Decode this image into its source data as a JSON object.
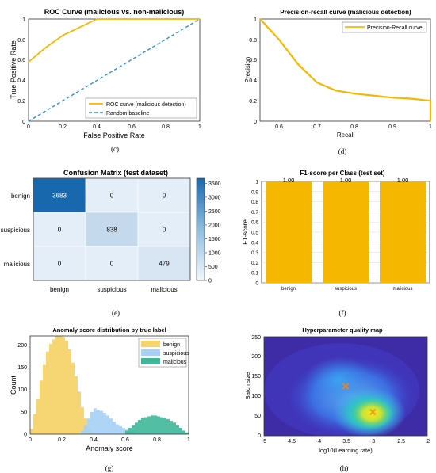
{
  "colors": {
    "orange": "#F5B700",
    "blue": "#2D8FE0",
    "benign_hist": "#F6D36B",
    "suspicious_hist": "#A6D0F5",
    "malicious_hist": "#3FB89A",
    "gray": "#555555"
  },
  "chart_data": [
    {
      "panel": "(c)",
      "type": "line",
      "title": "ROC Curve (malicious vs. non-malicious)",
      "xlabel": "False Positive Rate",
      "ylabel": "True Positive Rate",
      "xlim": [
        0,
        1
      ],
      "ylim": [
        0,
        1
      ],
      "xticks": [
        "0",
        "0.2",
        "0.4",
        "0.6",
        "0.8",
        "1"
      ],
      "yticks": [
        "0",
        "0.2",
        "0.4",
        "0.6",
        "0.8",
        "1"
      ],
      "grid": false,
      "legend": "bottom-right",
      "series": [
        {
          "name": "ROC curve (malicious detection)",
          "style": "solid",
          "x": [
            0,
            0.1,
            0.2,
            0.3,
            0.4,
            0.5,
            0.6,
            0.8,
            1.0
          ],
          "y": [
            0.58,
            0.72,
            0.84,
            0.92,
            1.0,
            1.0,
            1.0,
            1.0,
            1.0
          ]
        },
        {
          "name": "Random baseline",
          "style": "dashed",
          "x": [
            0,
            1
          ],
          "y": [
            0,
            1
          ]
        }
      ]
    },
    {
      "panel": "(d)",
      "type": "line",
      "title": "Precision-recall curve (malicious detection)",
      "xlabel": "Recall",
      "ylabel": "Precision",
      "xlim": [
        0.55,
        1
      ],
      "ylim": [
        0,
        1
      ],
      "xticks": [
        "0.6",
        "0.7",
        "0.8",
        "0.9",
        "1"
      ],
      "yticks": [
        "0",
        "0.2",
        "0.4",
        "0.6",
        "0.8",
        "1"
      ],
      "grid": false,
      "legend": "top-right",
      "series": [
        {
          "name": "Precision-Recall curve",
          "x": [
            0.55,
            0.6,
            0.65,
            0.7,
            0.75,
            0.8,
            0.85,
            0.9,
            0.95,
            1.0,
            1.0
          ],
          "y": [
            1.0,
            0.8,
            0.56,
            0.38,
            0.3,
            0.27,
            0.25,
            0.23,
            0.22,
            0.2,
            0.0
          ]
        }
      ]
    },
    {
      "panel": "(e)",
      "type": "heatmap",
      "title": "Confusion Matrix (test dataset)",
      "rows": [
        "benign",
        "suspicious",
        "malicious"
      ],
      "cols": [
        "benign",
        "suspicious",
        "malicious"
      ],
      "values": [
        [
          3683,
          0,
          0
        ],
        [
          0,
          838,
          0
        ],
        [
          0,
          0,
          479
        ]
      ],
      "cell_labels": [
        [
          "3683",
          "0",
          "0"
        ],
        [
          "0",
          "838",
          "0"
        ],
        [
          "0",
          "0",
          "479"
        ]
      ],
      "colorbar_ticks": [
        "0",
        "500",
        "1000",
        "1500",
        "2000",
        "2500",
        "3000",
        "3500"
      ],
      "colorbar_range": [
        0,
        3683
      ]
    },
    {
      "panel": "(f)",
      "type": "bar",
      "title": "F1-score per Class (test set)",
      "ylabel": "F1-score",
      "categories": [
        "benign",
        "suspicious",
        "malicious"
      ],
      "values": [
        1.0,
        1.0,
        1.0
      ],
      "value_labels": [
        "1.00",
        "1.00",
        "1.00"
      ],
      "ylim": [
        0,
        1
      ],
      "yticks": [
        "0",
        "0.1",
        "0.2",
        "0.3",
        "0.4",
        "0.5",
        "0.6",
        "0.7",
        "0.8",
        "0.9",
        "1"
      ],
      "grid": true
    },
    {
      "panel": "(g)",
      "type": "bar",
      "title": "Anomaly score distribution by true label",
      "xlabel": "Anomaly score",
      "ylabel": "Count",
      "xlim": [
        0,
        1
      ],
      "ylim": [
        0,
        220
      ],
      "xticks": [
        "0",
        "0.2",
        "0.4",
        "0.6",
        "0.8",
        "1"
      ],
      "yticks": [
        "0",
        "50",
        "100",
        "150",
        "200"
      ],
      "bin_width": 0.02,
      "legend": "top-right",
      "series": [
        {
          "name": "benign",
          "bin_starts": [
            0.0,
            0.02,
            0.04,
            0.06,
            0.08,
            0.1,
            0.12,
            0.14,
            0.16,
            0.18,
            0.2,
            0.22,
            0.24,
            0.26,
            0.28,
            0.3,
            0.32,
            0.34,
            0.36,
            0.38
          ],
          "values": [
            12,
            45,
            78,
            120,
            155,
            185,
            202,
            212,
            220,
            220,
            218,
            210,
            190,
            160,
            130,
            95,
            60,
            35,
            15,
            5
          ]
        },
        {
          "name": "suspicious",
          "bin_starts": [
            0.32,
            0.34,
            0.36,
            0.38,
            0.4,
            0.42,
            0.44,
            0.46,
            0.48,
            0.5,
            0.52,
            0.54,
            0.56,
            0.58,
            0.6,
            0.62,
            0.64
          ],
          "values": [
            8,
            20,
            35,
            50,
            58,
            55,
            52,
            48,
            42,
            35,
            28,
            22,
            18,
            14,
            10,
            8,
            5
          ]
        },
        {
          "name": "malicious",
          "bin_starts": [
            0.6,
            0.62,
            0.64,
            0.66,
            0.68,
            0.7,
            0.72,
            0.74,
            0.76,
            0.78,
            0.8,
            0.82,
            0.84,
            0.86,
            0.88,
            0.9,
            0.92,
            0.94,
            0.96,
            0.98
          ],
          "values": [
            8,
            14,
            20,
            26,
            32,
            36,
            38,
            40,
            42,
            42,
            40,
            38,
            36,
            34,
            30,
            26,
            20,
            14,
            8,
            4
          ]
        }
      ]
    },
    {
      "panel": "(h)",
      "type": "heatmap",
      "title": "Hyperparameter quality map",
      "xlabel": "log10(Learning rate)",
      "ylabel": "Batch size",
      "xlim": [
        -5,
        -2
      ],
      "ylim": [
        0,
        250
      ],
      "xticks": [
        "-5",
        "-4.5",
        "-4",
        "-3.5",
        "-3",
        "-2.5",
        "-2"
      ],
      "yticks": [
        "0",
        "50",
        "100",
        "150",
        "200",
        "250"
      ],
      "markers": [
        {
          "x": -3.5,
          "y": 125,
          "symbol": "x",
          "color": "#E8822A"
        },
        {
          "x": -3.0,
          "y": 60,
          "symbol": "x",
          "color": "#E8A21A"
        }
      ]
    }
  ],
  "captions": [
    "(c)",
    "(d)",
    "(e)",
    "(f)",
    "(g)",
    "(h)"
  ]
}
